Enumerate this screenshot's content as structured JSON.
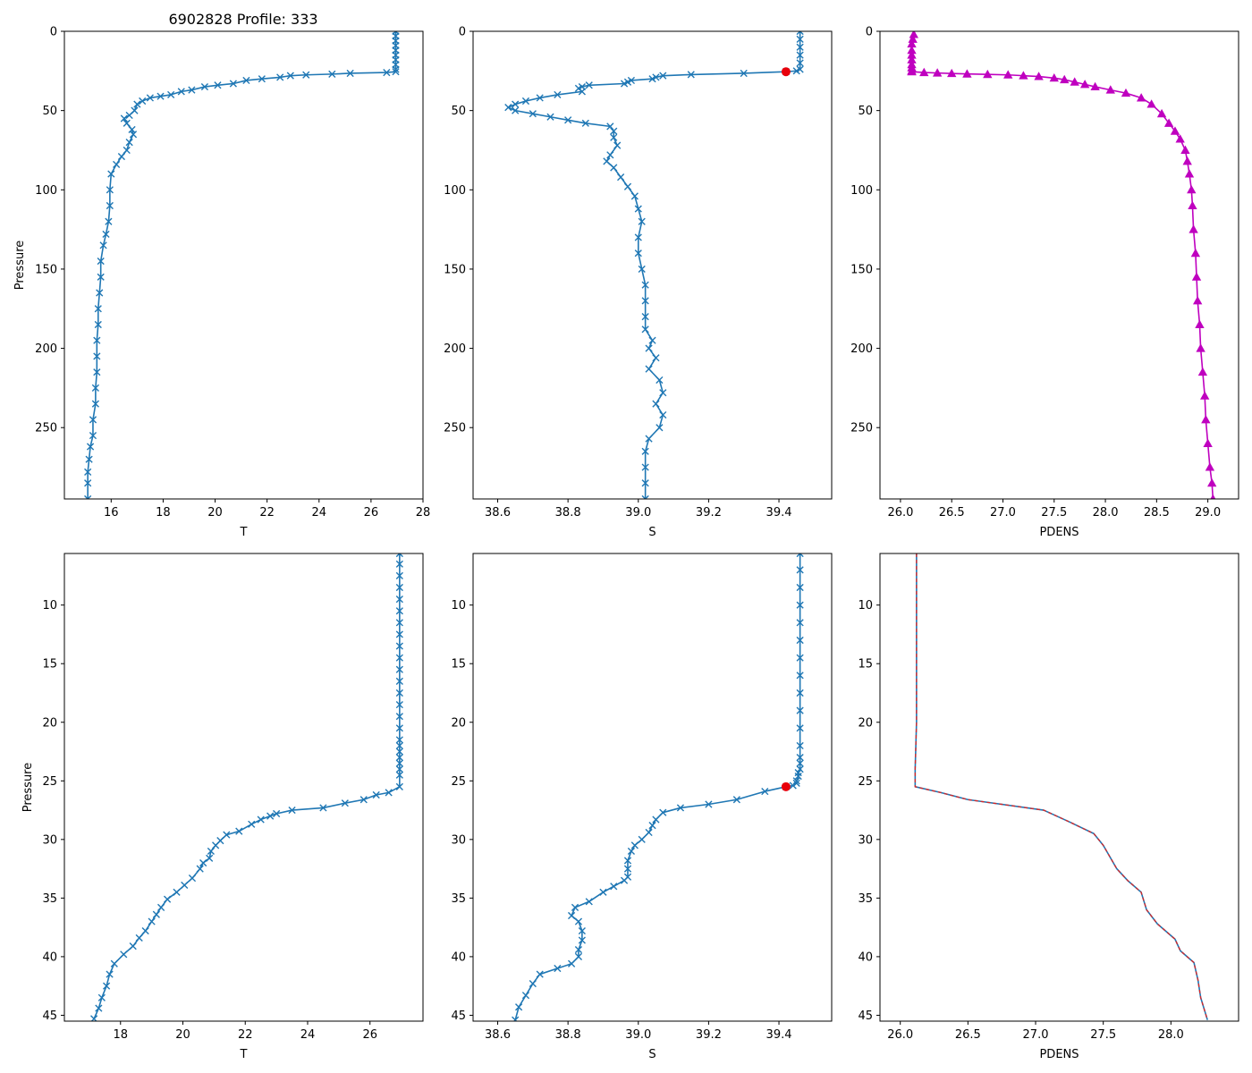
{
  "figure_title": "6902828 Profile: 333",
  "colors": {
    "blue": "#1f77b4",
    "magenta": "#bf00bf",
    "red": "#e8000b",
    "dashed_red": "#d62728",
    "axis": "#000000"
  },
  "chart_data": [
    {
      "id": "p1",
      "type": "line",
      "title": "6902828 Profile: 333",
      "xlabel": "T",
      "ylabel": "Pressure",
      "xlim": [
        14.2,
        28.0
      ],
      "ylim": [
        295,
        0
      ],
      "xticks": [
        16,
        18,
        20,
        22,
        24,
        26,
        28
      ],
      "yticks": [
        0,
        50,
        100,
        150,
        200,
        250
      ],
      "series": [
        {
          "name": "T",
          "marker": "x",
          "color": "#1f77b4",
          "x": [
            26.95,
            26.95,
            26.95,
            26.95,
            26.95,
            26.95,
            26.95,
            26.95,
            26.95,
            26.95,
            26.6,
            25.2,
            24.5,
            23.5,
            22.9,
            22.5,
            21.8,
            21.2,
            20.7,
            20.1,
            19.6,
            19.1,
            18.7,
            18.3,
            17.9,
            17.5,
            17.2,
            17.0,
            16.9,
            16.7,
            16.5,
            16.6,
            16.8,
            16.85,
            16.7,
            16.6,
            16.4,
            16.2,
            16.0,
            15.95,
            15.95,
            15.9,
            15.8,
            15.7,
            15.6,
            15.6,
            15.55,
            15.5,
            15.5,
            15.45,
            15.45,
            15.45,
            15.4,
            15.4,
            15.3,
            15.3,
            15.2,
            15.15,
            15.1,
            15.1,
            15.1
          ],
          "y": [
            0,
            3,
            6,
            9,
            12,
            15,
            18,
            21,
            24,
            25.5,
            26,
            26.5,
            27,
            27.5,
            28,
            29,
            30,
            31,
            33,
            34,
            35,
            37,
            38,
            40,
            41,
            42,
            44,
            46,
            50,
            53,
            55,
            58,
            62,
            65,
            70,
            75,
            79,
            84,
            90,
            100,
            110,
            120,
            128,
            135,
            145,
            155,
            165,
            175,
            185,
            195,
            205,
            215,
            225,
            235,
            245,
            255,
            262,
            270,
            278,
            285,
            295
          ]
        }
      ]
    },
    {
      "id": "p2",
      "type": "line",
      "title": "",
      "xlabel": "S",
      "ylabel": "",
      "xlim": [
        38.53,
        39.55
      ],
      "ylim": [
        295,
        0
      ],
      "xticks": [
        38.6,
        38.8,
        39.0,
        39.2,
        39.4
      ],
      "yticks": [
        0,
        50,
        100,
        150,
        200,
        250
      ],
      "highlight": {
        "x": 39.42,
        "y": 25.5
      },
      "series": [
        {
          "name": "S",
          "marker": "x",
          "color": "#1f77b4",
          "x": [
            39.46,
            39.46,
            39.46,
            39.46,
            39.46,
            39.46,
            39.45,
            39.42,
            39.3,
            39.15,
            39.07,
            39.05,
            39.04,
            38.98,
            38.97,
            38.96,
            38.86,
            38.84,
            38.83,
            38.84,
            38.77,
            38.72,
            38.68,
            38.65,
            38.63,
            38.65,
            38.7,
            38.75,
            38.8,
            38.85,
            38.92,
            38.93,
            38.93,
            38.94,
            38.92,
            38.91,
            38.93,
            38.95,
            38.97,
            38.99,
            39.0,
            39.01,
            39.0,
            39.0,
            39.01,
            39.02,
            39.02,
            39.02,
            39.02,
            39.04,
            39.03,
            39.05,
            39.03,
            39.06,
            39.07,
            39.05,
            39.07,
            39.06,
            39.03,
            39.02,
            39.02,
            39.02,
            39.02
          ],
          "y": [
            0,
            5,
            10,
            15,
            20,
            24,
            25,
            25.5,
            26.5,
            27.3,
            28,
            29,
            30,
            31,
            32,
            33,
            34,
            35,
            36,
            38,
            40,
            42,
            44,
            46,
            48,
            50,
            52,
            54,
            56,
            58,
            60,
            63,
            67,
            72,
            78,
            82,
            86,
            92,
            98,
            104,
            112,
            120,
            130,
            140,
            150,
            160,
            170,
            180,
            188,
            195,
            200,
            206,
            213,
            220,
            228,
            235,
            242,
            250,
            257,
            265,
            275,
            285,
            295
          ]
        }
      ]
    },
    {
      "id": "p3",
      "type": "line",
      "title": "",
      "xlabel": "PDENS",
      "ylabel": "",
      "xlim": [
        25.8,
        29.3
      ],
      "ylim": [
        295,
        0
      ],
      "xticks": [
        26.0,
        26.5,
        27.0,
        27.5,
        28.0,
        28.5,
        29.0
      ],
      "yticks": [
        0,
        50,
        100,
        150,
        200,
        250
      ],
      "series": [
        {
          "name": "PDENS",
          "marker": "triangle",
          "color": "#bf00bf",
          "x": [
            26.13,
            26.12,
            26.11,
            26.11,
            26.11,
            26.11,
            26.11,
            26.11,
            26.11,
            26.11,
            26.23,
            26.36,
            26.5,
            26.65,
            26.85,
            27.05,
            27.2,
            27.35,
            27.5,
            27.6,
            27.7,
            27.8,
            27.9,
            28.05,
            28.2,
            28.35,
            28.45,
            28.55,
            28.62,
            28.68,
            28.73,
            28.78,
            28.8,
            28.82,
            28.84,
            28.85,
            28.86,
            28.88,
            28.89,
            28.9,
            28.92,
            28.93,
            28.95,
            28.97,
            28.98,
            29.0,
            29.02,
            29.04,
            29.05
          ],
          "y": [
            2,
            5,
            8,
            12,
            15,
            18,
            21,
            23,
            25,
            25.5,
            26,
            26.3,
            26.6,
            26.9,
            27.2,
            27.5,
            28,
            28.5,
            29.5,
            30.5,
            32,
            33.5,
            35,
            37,
            39,
            42,
            46,
            52,
            58,
            63,
            68,
            75,
            82,
            90,
            100,
            110,
            125,
            140,
            155,
            170,
            185,
            200,
            215,
            230,
            245,
            260,
            275,
            285,
            295
          ]
        }
      ]
    },
    {
      "id": "p4",
      "type": "line",
      "title": "",
      "xlabel": "T",
      "ylabel": "Pressure",
      "xlim": [
        16.2,
        27.7
      ],
      "ylim": [
        45.5,
        5.6
      ],
      "xticks": [
        18,
        20,
        22,
        24,
        26
      ],
      "yticks": [
        10,
        15,
        20,
        25,
        30,
        35,
        40,
        45
      ],
      "series": [
        {
          "name": "T",
          "marker": "x",
          "color": "#1f77b4",
          "x": [
            26.95,
            26.95,
            26.95,
            26.95,
            26.95,
            26.95,
            26.95,
            26.95,
            26.95,
            26.95,
            26.95,
            26.95,
            26.95,
            26.95,
            26.95,
            26.95,
            26.95,
            26.95,
            26.95,
            26.95,
            26.95,
            26.95,
            26.95,
            26.95,
            26.6,
            26.2,
            25.8,
            25.2,
            24.5,
            23.5,
            23.0,
            22.8,
            22.5,
            22.2,
            21.8,
            21.4,
            21.2,
            21.05,
            20.9,
            20.85,
            20.65,
            20.55,
            20.3,
            20.05,
            19.8,
            19.5,
            19.3,
            19.15,
            19.0,
            18.8,
            18.6,
            18.4,
            18.1,
            17.8,
            17.65,
            17.55,
            17.4,
            17.3,
            17.15
          ],
          "y": [
            5.6,
            6.5,
            7.5,
            8.5,
            9.5,
            10.5,
            11.5,
            12.5,
            13.5,
            14.5,
            15.5,
            16.5,
            17.5,
            18.5,
            19.5,
            20.5,
            21.5,
            22.0,
            22.5,
            23.0,
            23.5,
            24.0,
            24.5,
            25.5,
            26.0,
            26.2,
            26.6,
            26.9,
            27.3,
            27.5,
            27.8,
            28.0,
            28.3,
            28.7,
            29.3,
            29.6,
            30.1,
            30.5,
            31.0,
            31.6,
            32.0,
            32.5,
            33.3,
            33.9,
            34.5,
            35.1,
            35.8,
            36.4,
            37.0,
            37.8,
            38.4,
            39.1,
            39.8,
            40.6,
            41.5,
            42.5,
            43.5,
            44.4,
            45.3
          ]
        }
      ]
    },
    {
      "id": "p5",
      "type": "line",
      "title": "",
      "xlabel": "S",
      "ylabel": "",
      "xlim": [
        38.53,
        39.55
      ],
      "ylim": [
        45.5,
        5.6
      ],
      "xticks": [
        38.6,
        38.8,
        39.0,
        39.2,
        39.4
      ],
      "yticks": [
        10,
        15,
        20,
        25,
        30,
        35,
        40,
        45
      ],
      "highlight": {
        "x": 39.42,
        "y": 25.5
      },
      "series": [
        {
          "name": "S",
          "marker": "x",
          "color": "#1f77b4",
          "x": [
            39.46,
            39.46,
            39.46,
            39.46,
            39.46,
            39.46,
            39.46,
            39.46,
            39.46,
            39.46,
            39.46,
            39.46,
            39.46,
            39.46,
            39.46,
            39.455,
            39.455,
            39.45,
            39.45,
            39.44,
            39.42,
            39.36,
            39.28,
            39.2,
            39.12,
            39.07,
            39.05,
            39.04,
            39.03,
            39.01,
            38.99,
            38.98,
            38.97,
            38.97,
            38.97,
            38.96,
            38.93,
            38.9,
            38.86,
            38.82,
            38.81,
            38.83,
            38.84,
            38.84,
            38.83,
            38.83,
            38.81,
            38.77,
            38.72,
            38.7,
            38.68,
            38.66,
            38.65
          ],
          "y": [
            5.6,
            7,
            8.5,
            10,
            11.5,
            13,
            14.5,
            16,
            17.5,
            19,
            20.5,
            22,
            23,
            23.5,
            24,
            24.3,
            24.6,
            25.0,
            25.2,
            25.4,
            25.5,
            25.9,
            26.6,
            27.0,
            27.3,
            27.7,
            28.3,
            28.8,
            29.4,
            30.0,
            30.5,
            31.0,
            31.8,
            32.5,
            33.2,
            33.5,
            34.0,
            34.5,
            35.3,
            35.8,
            36.5,
            37.0,
            37.8,
            38.6,
            39.4,
            40.0,
            40.6,
            41.0,
            41.5,
            42.3,
            43.3,
            44.3,
            45.4
          ]
        }
      ]
    },
    {
      "id": "p6",
      "type": "line",
      "title": "",
      "xlabel": "PDENS",
      "ylabel": "",
      "xlim": [
        25.85,
        28.5
      ],
      "ylim": [
        45.5,
        5.6
      ],
      "xticks": [
        26.0,
        26.5,
        27.0,
        27.5,
        28.0
      ],
      "yticks": [
        10,
        15,
        20,
        25,
        30,
        35,
        40,
        45
      ],
      "series": [
        {
          "name": "PDENS",
          "marker": "none",
          "color": "#1f77b4",
          "dashed_overlay": "#d62728",
          "x": [
            26.12,
            26.12,
            26.12,
            26.12,
            26.11,
            26.11,
            26.11,
            26.11,
            26.3,
            26.5,
            27.06,
            27.25,
            27.43,
            27.5,
            27.6,
            27.68,
            27.78,
            27.82,
            27.9,
            28.03,
            28.07,
            28.17,
            28.2,
            28.22,
            28.27
          ],
          "y": [
            5.6,
            10,
            15,
            20,
            24.0,
            24.8,
            25.2,
            25.5,
            26.0,
            26.6,
            27.5,
            28.5,
            29.5,
            30.5,
            32.5,
            33.5,
            34.5,
            36.0,
            37.2,
            38.5,
            39.5,
            40.5,
            42.0,
            43.5,
            45.4
          ]
        }
      ]
    }
  ]
}
